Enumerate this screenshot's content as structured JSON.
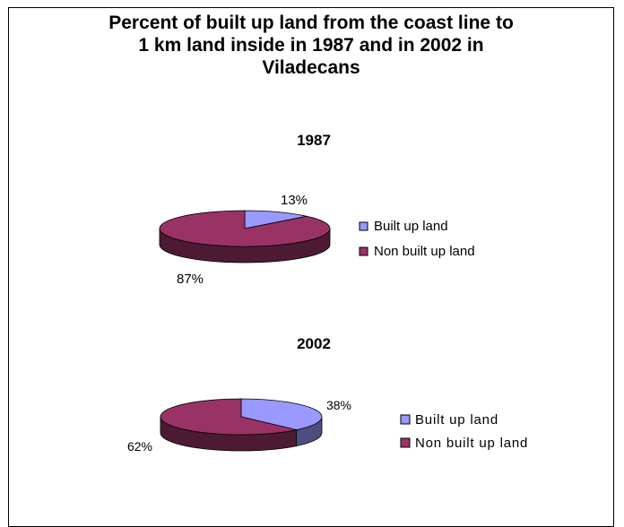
{
  "chart_title_lines": [
    "Percent of built up land from the coast line to",
    "1 km land inside in 1987 and in 2002 in",
    "Viladecans"
  ],
  "colors": {
    "built_top": "#9999ff",
    "built_side": "#4d4d80",
    "non_top": "#993366",
    "non_side": "#4d1a33"
  },
  "chart_data": [
    {
      "type": "pie",
      "title": "1987",
      "categories": [
        "Built up land",
        "Non built up land"
      ],
      "values": [
        13,
        87
      ],
      "data_labels": [
        "13%",
        "87%"
      ],
      "legend": [
        "Built up land",
        "Non built up land"
      ],
      "legend_position": "right",
      "style": "3d"
    },
    {
      "type": "pie",
      "title": "2002",
      "categories": [
        "Built up land",
        "Non built up land"
      ],
      "values": [
        38,
        62
      ],
      "data_labels": [
        "38%",
        "62%"
      ],
      "legend": [
        "Built up land",
        "Non built up land"
      ],
      "legend_position": "right",
      "style": "3d"
    }
  ]
}
